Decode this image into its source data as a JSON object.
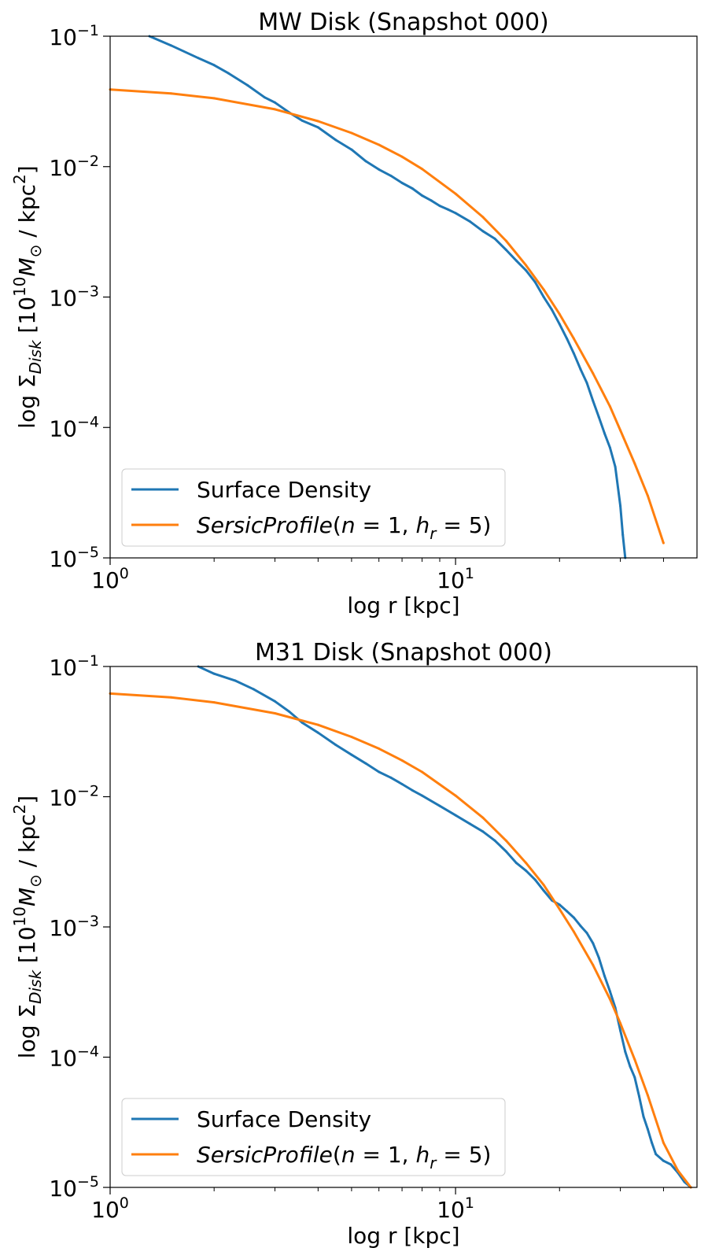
{
  "chart_data": [
    {
      "type": "line",
      "title": "MW Disk (Snapshot 000)",
      "xlabel": "log r [kpc]",
      "ylabel": "log Σ_Disk [10^10 M_⊙ / kpc^2]",
      "xscale": "log",
      "yscale": "log",
      "xlim": [
        1,
        50
      ],
      "ylim": [
        1e-05,
        0.1
      ],
      "x_ticks": [
        {
          "base": "10",
          "exp": "0"
        },
        {
          "base": "10",
          "exp": "1"
        }
      ],
      "y_ticks": [
        {
          "base": "10",
          "exp": "−1",
          "value": 0.1
        },
        {
          "base": "10",
          "exp": "−2",
          "value": 0.01
        },
        {
          "base": "10",
          "exp": "−3",
          "value": 0.001
        },
        {
          "base": "10",
          "exp": "−4",
          "value": 0.0001
        },
        {
          "base": "10",
          "exp": "−5",
          "value": 1e-05
        }
      ],
      "legend_position": "lower-left",
      "series": [
        {
          "name": "Surface Density",
          "color": "#1f77b4",
          "x": [
            1.3,
            1.5,
            1.8,
            2.0,
            2.2,
            2.5,
            2.8,
            3.0,
            3.3,
            3.6,
            4.0,
            4.5,
            5.0,
            5.5,
            6.0,
            6.5,
            7.0,
            7.5,
            8.0,
            8.5,
            9.0,
            9.5,
            10.0,
            11.0,
            12.0,
            13.0,
            14.0,
            15.0,
            16.0,
            17.0,
            18.0,
            19.0,
            20.0,
            21.0,
            22.0,
            23.0,
            24.0,
            25.0,
            26.0,
            27.0,
            28.0,
            29.0,
            30.0,
            30.5,
            31.0
          ],
          "y": [
            0.1,
            0.085,
            0.068,
            0.06,
            0.052,
            0.042,
            0.034,
            0.031,
            0.026,
            0.0225,
            0.02,
            0.016,
            0.0135,
            0.011,
            0.0095,
            0.0085,
            0.0075,
            0.0068,
            0.006,
            0.0055,
            0.005,
            0.0047,
            0.0044,
            0.0038,
            0.0032,
            0.0028,
            0.0023,
            0.0019,
            0.0016,
            0.0013,
            0.001,
            0.0008,
            0.00062,
            0.00048,
            0.00037,
            0.00028,
            0.00022,
            0.00016,
            0.00012,
            9e-05,
            7e-05,
            5e-05,
            2.5e-05,
            1.5e-05,
            1e-05
          ]
        },
        {
          "name": "SersicProfile(n = 1, h_r = 5)",
          "color": "#ff7f0e",
          "x": [
            1,
            1.5,
            2,
            3,
            4,
            5,
            6,
            7,
            8,
            10,
            12,
            14,
            16,
            18,
            20,
            22,
            25,
            28,
            30,
            33,
            36,
            40
          ],
          "y": [
            0.039,
            0.0364,
            0.0334,
            0.0275,
            0.0223,
            0.0181,
            0.0147,
            0.0119,
            0.0096,
            0.0062,
            0.0041,
            0.0027,
            0.00175,
            0.00114,
            0.00074,
            0.00048,
            0.00026,
            0.000145,
            9.5e-05,
            5.3e-05,
            3e-05,
            1.3e-05
          ]
        }
      ]
    },
    {
      "type": "line",
      "title": "M31 Disk (Snapshot 000)",
      "xlabel": "log r [kpc]",
      "ylabel": "log Σ_Disk [10^10 M_⊙ / kpc^2]",
      "xscale": "log",
      "yscale": "log",
      "xlim": [
        1,
        50
      ],
      "ylim": [
        1e-05,
        0.1
      ],
      "x_ticks": [
        {
          "base": "10",
          "exp": "0"
        },
        {
          "base": "10",
          "exp": "1"
        }
      ],
      "y_ticks": [
        {
          "base": "10",
          "exp": "−1",
          "value": 0.1
        },
        {
          "base": "10",
          "exp": "−2",
          "value": 0.01
        },
        {
          "base": "10",
          "exp": "−3",
          "value": 0.001
        },
        {
          "base": "10",
          "exp": "−4",
          "value": 0.0001
        },
        {
          "base": "10",
          "exp": "−5",
          "value": 1e-05
        }
      ],
      "legend_position": "lower-left",
      "series": [
        {
          "name": "Surface Density",
          "color": "#1f77b4",
          "x": [
            1.8,
            2.0,
            2.3,
            2.6,
            3.0,
            3.3,
            3.6,
            4.0,
            4.5,
            5.0,
            5.5,
            6.0,
            6.5,
            7.0,
            7.5,
            8.0,
            9.0,
            10.0,
            11.0,
            12.0,
            13.0,
            14.0,
            15.0,
            16.0,
            17.0,
            18.0,
            19.0,
            20.0,
            21.0,
            22.0,
            23.0,
            24.0,
            25.0,
            26.0,
            27.0,
            28.0,
            29.0,
            30.0,
            31.0,
            32.0,
            33.0,
            34.0,
            35.0,
            36.0,
            37.0,
            38.0,
            40.0,
            42.0,
            44.0,
            46.0,
            48.0
          ],
          "y": [
            0.1,
            0.088,
            0.078,
            0.067,
            0.054,
            0.045,
            0.037,
            0.031,
            0.025,
            0.021,
            0.018,
            0.0155,
            0.014,
            0.0125,
            0.0112,
            0.0102,
            0.0085,
            0.0072,
            0.0062,
            0.0054,
            0.0046,
            0.0038,
            0.0031,
            0.0027,
            0.0023,
            0.0019,
            0.0016,
            0.00148,
            0.00132,
            0.00118,
            0.00102,
            0.0009,
            0.00075,
            0.00058,
            0.00042,
            0.00032,
            0.00024,
            0.00016,
            0.00011,
            8.5e-05,
            7e-05,
            5e-05,
            3.5e-05,
            2.8e-05,
            2.2e-05,
            1.8e-05,
            1.6e-05,
            1.5e-05,
            1.3e-05,
            1.1e-05,
            1e-05
          ]
        },
        {
          "name": "SersicProfile(n = 1, h_r = 5)",
          "color": "#ff7f0e",
          "x": [
            1,
            1.5,
            2,
            3,
            4,
            5,
            6,
            7,
            8,
            10,
            12,
            14,
            16,
            18,
            20,
            22,
            25,
            28,
            30,
            33,
            36,
            40,
            44,
            48
          ],
          "y": [
            0.062,
            0.058,
            0.053,
            0.0437,
            0.0356,
            0.0288,
            0.0234,
            0.019,
            0.0155,
            0.0102,
            0.0069,
            0.0046,
            0.0031,
            0.0021,
            0.00137,
            0.00092,
            0.00051,
            0.000279,
            0.000182,
            9.6e-05,
            5.1e-05,
            2.2e-05,
            1.35e-05,
            1e-05
          ]
        }
      ]
    }
  ]
}
